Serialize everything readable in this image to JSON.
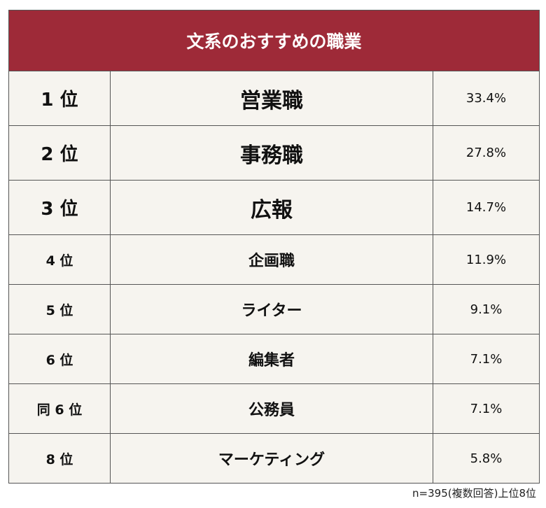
{
  "header": {
    "title": "文系のおすすめの職業"
  },
  "table": {
    "rows": [
      [
        "1 位",
        "営業職",
        "33.4%"
      ],
      [
        "2 位",
        "事務職",
        "27.8%"
      ],
      [
        "3 位",
        "広報",
        "14.7%"
      ],
      [
        "4 位",
        "企画職",
        "11.9%"
      ],
      [
        "5 位",
        "ライター",
        "9.1%"
      ],
      [
        "6 位",
        "編集者",
        "7.1%"
      ],
      [
        "同 6 位",
        "公務員",
        "7.1%"
      ],
      [
        "8 位",
        "マーケティング",
        "5.8%"
      ]
    ]
  },
  "footnote": "n=395(複数回答)上位8位"
}
